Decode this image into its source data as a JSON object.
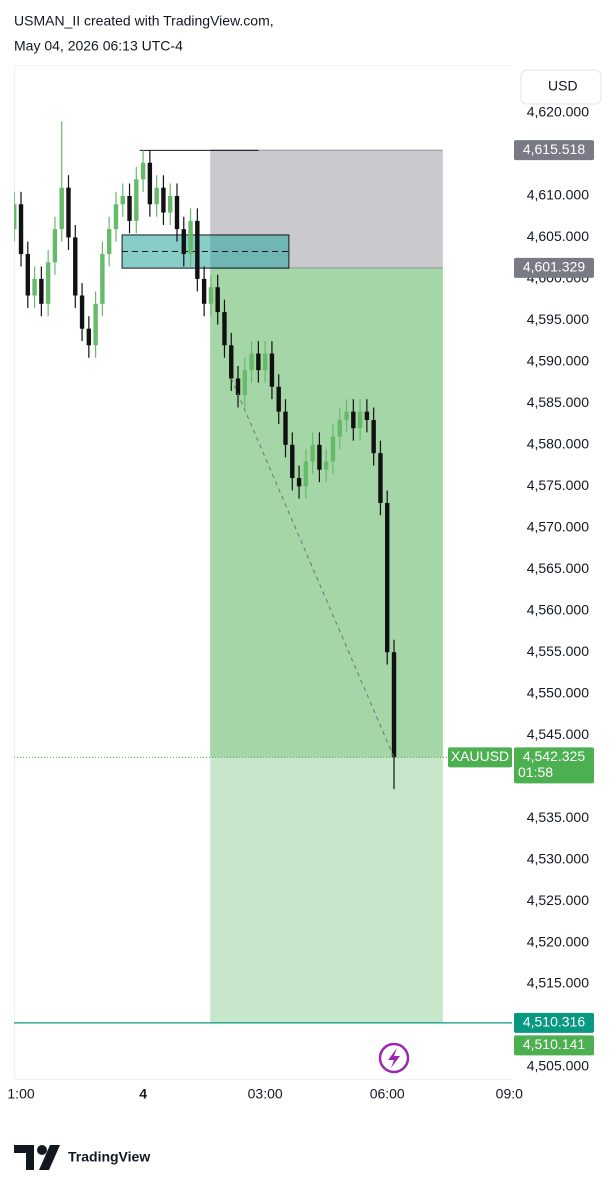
{
  "header": {
    "author_line": "USMAN_II created with TradingView.com,",
    "date_line": "May 04, 2026 06:13 UTC-4"
  },
  "currency": "USD",
  "brand": "TradingView",
  "chart_data": {
    "type": "candlestick",
    "up_color": "#66bb6a",
    "down_color": "#111111",
    "x": [
      -190,
      -180,
      -170,
      -160,
      -150,
      -140,
      -130,
      -120,
      -110,
      -100,
      -90,
      -80,
      -70,
      -60,
      -50,
      -40,
      -30,
      -20,
      -10,
      0,
      10,
      20,
      30,
      40,
      50,
      60,
      70,
      80,
      90,
      100,
      110,
      120,
      130,
      140,
      150,
      160,
      170,
      180,
      190,
      200,
      210,
      220,
      230,
      240,
      250,
      260,
      270,
      280,
      290,
      300,
      310,
      320,
      330,
      340,
      350,
      360,
      370
    ],
    "open": [
      4606,
      4609,
      4603,
      4598,
      4600,
      4597,
      4602,
      4606,
      4611,
      4605,
      4598,
      4594,
      4592,
      4597,
      4603,
      4606,
      4609,
      4610,
      4607,
      4612,
      4614,
      4609,
      4611,
      4608,
      4610,
      4606,
      4603,
      4607,
      4600,
      4597,
      4599,
      4596,
      4592,
      4588,
      4586,
      4589,
      4591,
      4589,
      4591,
      4587,
      4584,
      4580,
      4576,
      4575,
      4578,
      4580,
      4577,
      4578,
      4581,
      4583,
      4584,
      4582,
      4584,
      4583,
      4579,
      4573,
      4555
    ],
    "high": [
      4610.5,
      4610.5,
      4604.5,
      4601.5,
      4601.5,
      4603.5,
      4607.5,
      4619,
      4612.5,
      4606.5,
      4599.5,
      4595.5,
      4598.5,
      4604.5,
      4607.5,
      4610.5,
      4611.5,
      4611.5,
      4613.5,
      4615.5,
      4615.5,
      4612.5,
      4612.5,
      4611.5,
      4611.5,
      4607.5,
      4608.5,
      4608.5,
      4601.5,
      4600.5,
      4600.5,
      4597.5,
      4593.5,
      4589.5,
      4590.5,
      4592.5,
      4592.5,
      4592.5,
      4592.5,
      4588.5,
      4585.5,
      4581.5,
      4577.5,
      4579.5,
      4581.5,
      4581.5,
      4579.5,
      4582.5,
      4584.5,
      4585.5,
      4585.5,
      4585.5,
      4585.5,
      4584.5,
      4580.5,
      4574.5,
      4556.5
    ],
    "low": [
      4604.5,
      4601.5,
      4596.5,
      4596.5,
      4595.5,
      4595.5,
      4600.5,
      4604.5,
      4603.5,
      4596.5,
      4592.5,
      4590.5,
      4590.5,
      4595.5,
      4601.5,
      4604.5,
      4607.5,
      4605.5,
      4605.5,
      4610.5,
      4607.5,
      4607.5,
      4606.5,
      4606.5,
      4604.5,
      4601.5,
      4601.5,
      4598.5,
      4595.5,
      4595.5,
      4594.5,
      4590.5,
      4586.5,
      4584.5,
      4584.5,
      4587.5,
      4587.5,
      4587.5,
      4585.5,
      4582.5,
      4578.5,
      4574.5,
      4573.5,
      4573.5,
      4576.5,
      4575.5,
      4575.5,
      4576.5,
      4579.5,
      4581.5,
      4580.5,
      4580.5,
      4581.5,
      4577.5,
      4571.5,
      4553.5,
      4538.5
    ],
    "close": [
      4609,
      4603,
      4598,
      4600,
      4597,
      4602,
      4606,
      4611,
      4605,
      4598,
      4594,
      4592,
      4597,
      4603,
      4606,
      4609,
      4610,
      4607,
      4612,
      4614,
      4609,
      4611,
      4608,
      4610,
      4606,
      4603,
      4607,
      4600,
      4597,
      4599,
      4596,
      4592,
      4588,
      4586,
      4589,
      4591,
      4589,
      4591,
      4587,
      4584,
      4580,
      4576,
      4575,
      4578,
      4580,
      4577,
      4578,
      4581,
      4583,
      4584,
      4582,
      4584,
      4583,
      4579,
      4573,
      4555,
      4542.325
    ],
    "xlim": [
      -211,
      544
    ],
    "xticks": [
      {
        "value": -180,
        "label": "1:00"
      },
      {
        "value": 0,
        "label": "4"
      },
      {
        "value": 180,
        "label": "03:00"
      },
      {
        "value": 360,
        "label": "06:00"
      },
      {
        "value": 540,
        "label": "09:0"
      }
    ],
    "ylim": [
      4505,
      4620
    ],
    "yticks": [
      {
        "value": 4505,
        "label": "4,505.000"
      },
      {
        "value": 4510,
        "label": "4,510.000"
      },
      {
        "value": 4515,
        "label": "4,515.000"
      },
      {
        "value": 4520,
        "label": "4,520.000"
      },
      {
        "value": 4525,
        "label": "4,525.000"
      },
      {
        "value": 4530,
        "label": "4,530.000"
      },
      {
        "value": 4535,
        "label": "4,535.000"
      },
      {
        "value": 4540,
        "label": "4,540.000"
      },
      {
        "value": 4545,
        "label": "4,545.000"
      },
      {
        "value": 4550,
        "label": "4,550.000"
      },
      {
        "value": 4555,
        "label": "4,555.000"
      },
      {
        "value": 4560,
        "label": "4,560.000"
      },
      {
        "value": 4565,
        "label": "4,565.000"
      },
      {
        "value": 4570,
        "label": "4,570.000"
      },
      {
        "value": 4575,
        "label": "4,575.000"
      },
      {
        "value": 4580,
        "label": "4,580.000"
      },
      {
        "value": 4585,
        "label": "4,585.000"
      },
      {
        "value": 4590,
        "label": "4,590.000"
      },
      {
        "value": 4595,
        "label": "4,595.000"
      },
      {
        "value": 4600,
        "label": "4,600.000"
      },
      {
        "value": 4605,
        "label": "4,605.000"
      },
      {
        "value": 4610,
        "label": "4,610.000"
      },
      {
        "value": 4615,
        "label": "4,615.000"
      },
      {
        "value": 4620,
        "label": "4,620.000"
      }
    ],
    "position": {
      "x": [
        99,
        442
      ],
      "stop": {
        "value": 4615.518,
        "label": "4,615.518"
      },
      "entry": {
        "value": 4601.329,
        "label": "4,601.329"
      },
      "target": {
        "value": 4510.316,
        "label": "4,510.316"
      }
    },
    "zone": {
      "x": [
        -31,
        215
      ],
      "y": [
        4601.3,
        4605.3
      ],
      "mid": 4603.3
    },
    "high_line": {
      "x": [
        -5,
        170
      ],
      "y": 4615.5
    },
    "path_line": {
      "x": [
        130,
        370
      ],
      "y": [
        4588,
        4542.325
      ]
    },
    "last_price": {
      "symbol": "XAUUSD",
      "value": 4542.325,
      "label": "4,542.325",
      "countdown": "01:58"
    },
    "low_tag": {
      "value": 4510.141,
      "label": "4,510.141"
    }
  }
}
